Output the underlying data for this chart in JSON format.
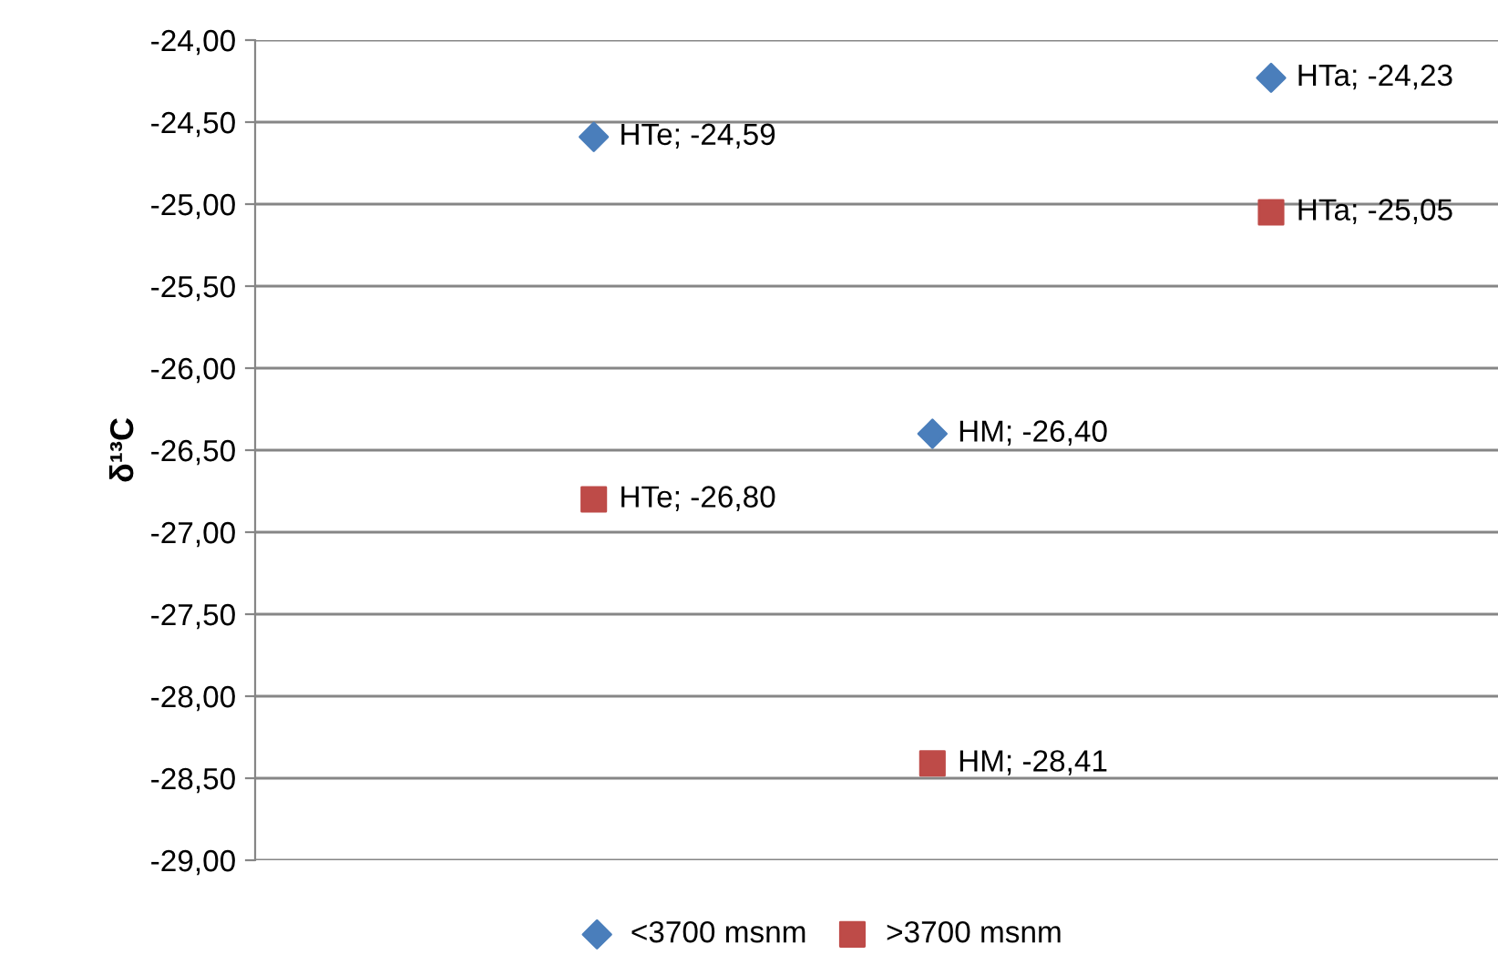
{
  "chart_data": {
    "type": "scatter",
    "ylabel": "δ¹³C",
    "categories": [
      null,
      null,
      null
    ],
    "series": [
      {
        "name": "<3700 msnm",
        "color": "#4a7ebb",
        "marker": "diamond",
        "values": [
          -24.59,
          -26.4,
          -24.23
        ],
        "value_labels": [
          "HTe; -24,59",
          "HM; -26,40",
          "HTa; -24,23"
        ]
      },
      {
        "name": ">3700 msnm",
        "color": "#be4b48",
        "marker": "square",
        "values": [
          -26.8,
          -28.41,
          -25.05
        ],
        "value_labels": [
          "HTe; -26,80",
          "HM; -28,41",
          "HTa; -25,05"
        ]
      }
    ],
    "ylim": [
      -29,
      -24
    ],
    "yticks": [
      {
        "value": -29,
        "label": "-29,00"
      },
      {
        "value": -28.5,
        "label": "-28,50"
      },
      {
        "value": -28,
        "label": "-28,00"
      },
      {
        "value": -27.5,
        "label": "-27,50"
      },
      {
        "value": -27,
        "label": "-27,00"
      },
      {
        "value": -26.5,
        "label": "-26,50"
      },
      {
        "value": -26,
        "label": "-26,00"
      },
      {
        "value": -25.5,
        "label": "-25,50"
      },
      {
        "value": -25,
        "label": "-25,00"
      },
      {
        "value": -24.5,
        "label": "-24,50"
      },
      {
        "value": -24,
        "label": "-24,00"
      }
    ],
    "grid": "y",
    "legend": "bottom"
  }
}
